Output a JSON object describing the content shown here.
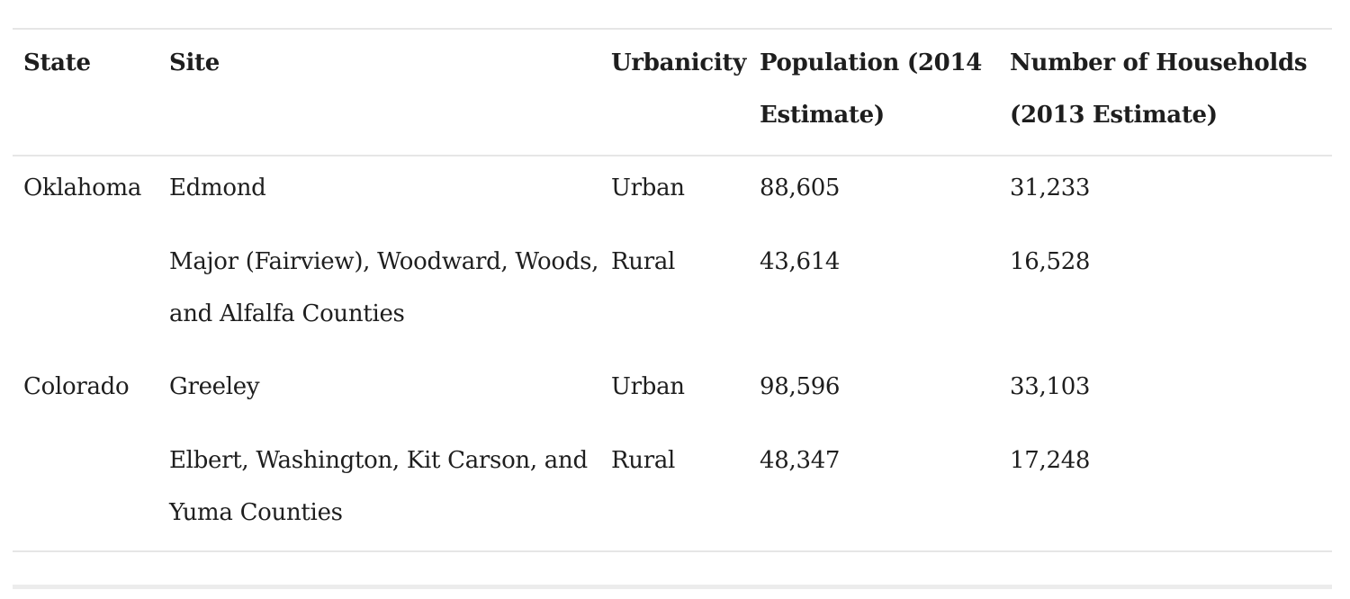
{
  "table": {
    "headers": {
      "state": "State",
      "site": "Site",
      "urbanicity": "Urbanicity",
      "population": "Population (2014 Estimate)",
      "households": "Number of Households (2013 Estimate)"
    },
    "rows": [
      {
        "state": "Oklahoma",
        "site": "Edmond",
        "urbanicity": "Urban",
        "population": "88,605",
        "households": "31,233"
      },
      {
        "state": "",
        "site": "Major (Fairview), Woodward, Woods, and Alfalfa Counties",
        "urbanicity": "Rural",
        "population": "43,614",
        "households": "16,528"
      },
      {
        "state": "Colorado",
        "site": "Greeley",
        "urbanicity": "Urban",
        "population": "98,596",
        "households": "33,103"
      },
      {
        "state": "",
        "site": "Elbert, Washington, Kit Carson, and Yuma Counties",
        "urbanicity": "Rural",
        "population": "48,347",
        "households": "17,248"
      }
    ]
  }
}
